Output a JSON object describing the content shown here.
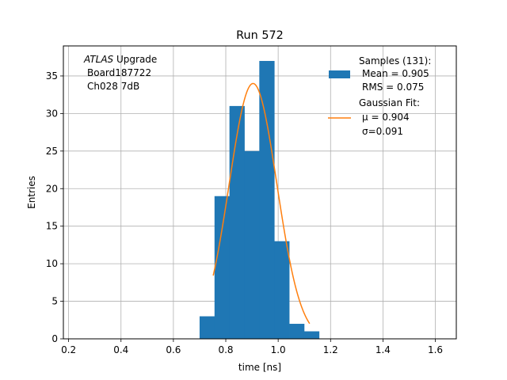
{
  "chart_data": {
    "type": "bar",
    "title": "Run 572",
    "xlabel": "time [ns]",
    "ylabel": "Entries",
    "xlim": [
      0.18,
      1.68
    ],
    "ylim": [
      0,
      39
    ],
    "xticks": [
      0.2,
      0.4,
      0.6,
      0.8,
      1.0,
      1.2,
      1.4,
      1.6
    ],
    "xtick_labels": [
      "0.2",
      "0.4",
      "0.6",
      "0.8",
      "1.0",
      "1.2",
      "1.4",
      "1.6"
    ],
    "yticks": [
      0,
      5,
      10,
      15,
      20,
      25,
      30,
      35
    ],
    "ytick_labels": [
      "0",
      "5",
      "10",
      "15",
      "20",
      "25",
      "30",
      "35"
    ],
    "grid": true,
    "legend_position": "top-right",
    "bar_color": "#1f77b4",
    "fit_color": "#ff7f0e",
    "histogram": {
      "bin_edges": [
        0.7,
        0.757,
        0.814,
        0.871,
        0.928,
        0.985,
        1.042,
        1.099,
        1.156
      ],
      "counts": [
        3,
        19,
        31,
        25,
        37,
        13,
        2,
        1
      ]
    },
    "gaussian_fit": {
      "amplitude": 34,
      "mu": 0.904,
      "sigma": 0.091,
      "x_start": 0.752,
      "x_end": 1.12
    },
    "annotation": {
      "line1_italic": "ATLAS",
      "line1_rest": " Upgrade",
      "line2": "Board187722",
      "line3": "Ch028 7dB"
    },
    "legend": {
      "samples_title": "Samples (131):",
      "samples_mean": "Mean = 0.905",
      "samples_rms": "RMS = 0.075",
      "fit_title": "Gaussian Fit:",
      "fit_mu": "μ = 0.904",
      "fit_sigma": "σ=0.091"
    }
  }
}
